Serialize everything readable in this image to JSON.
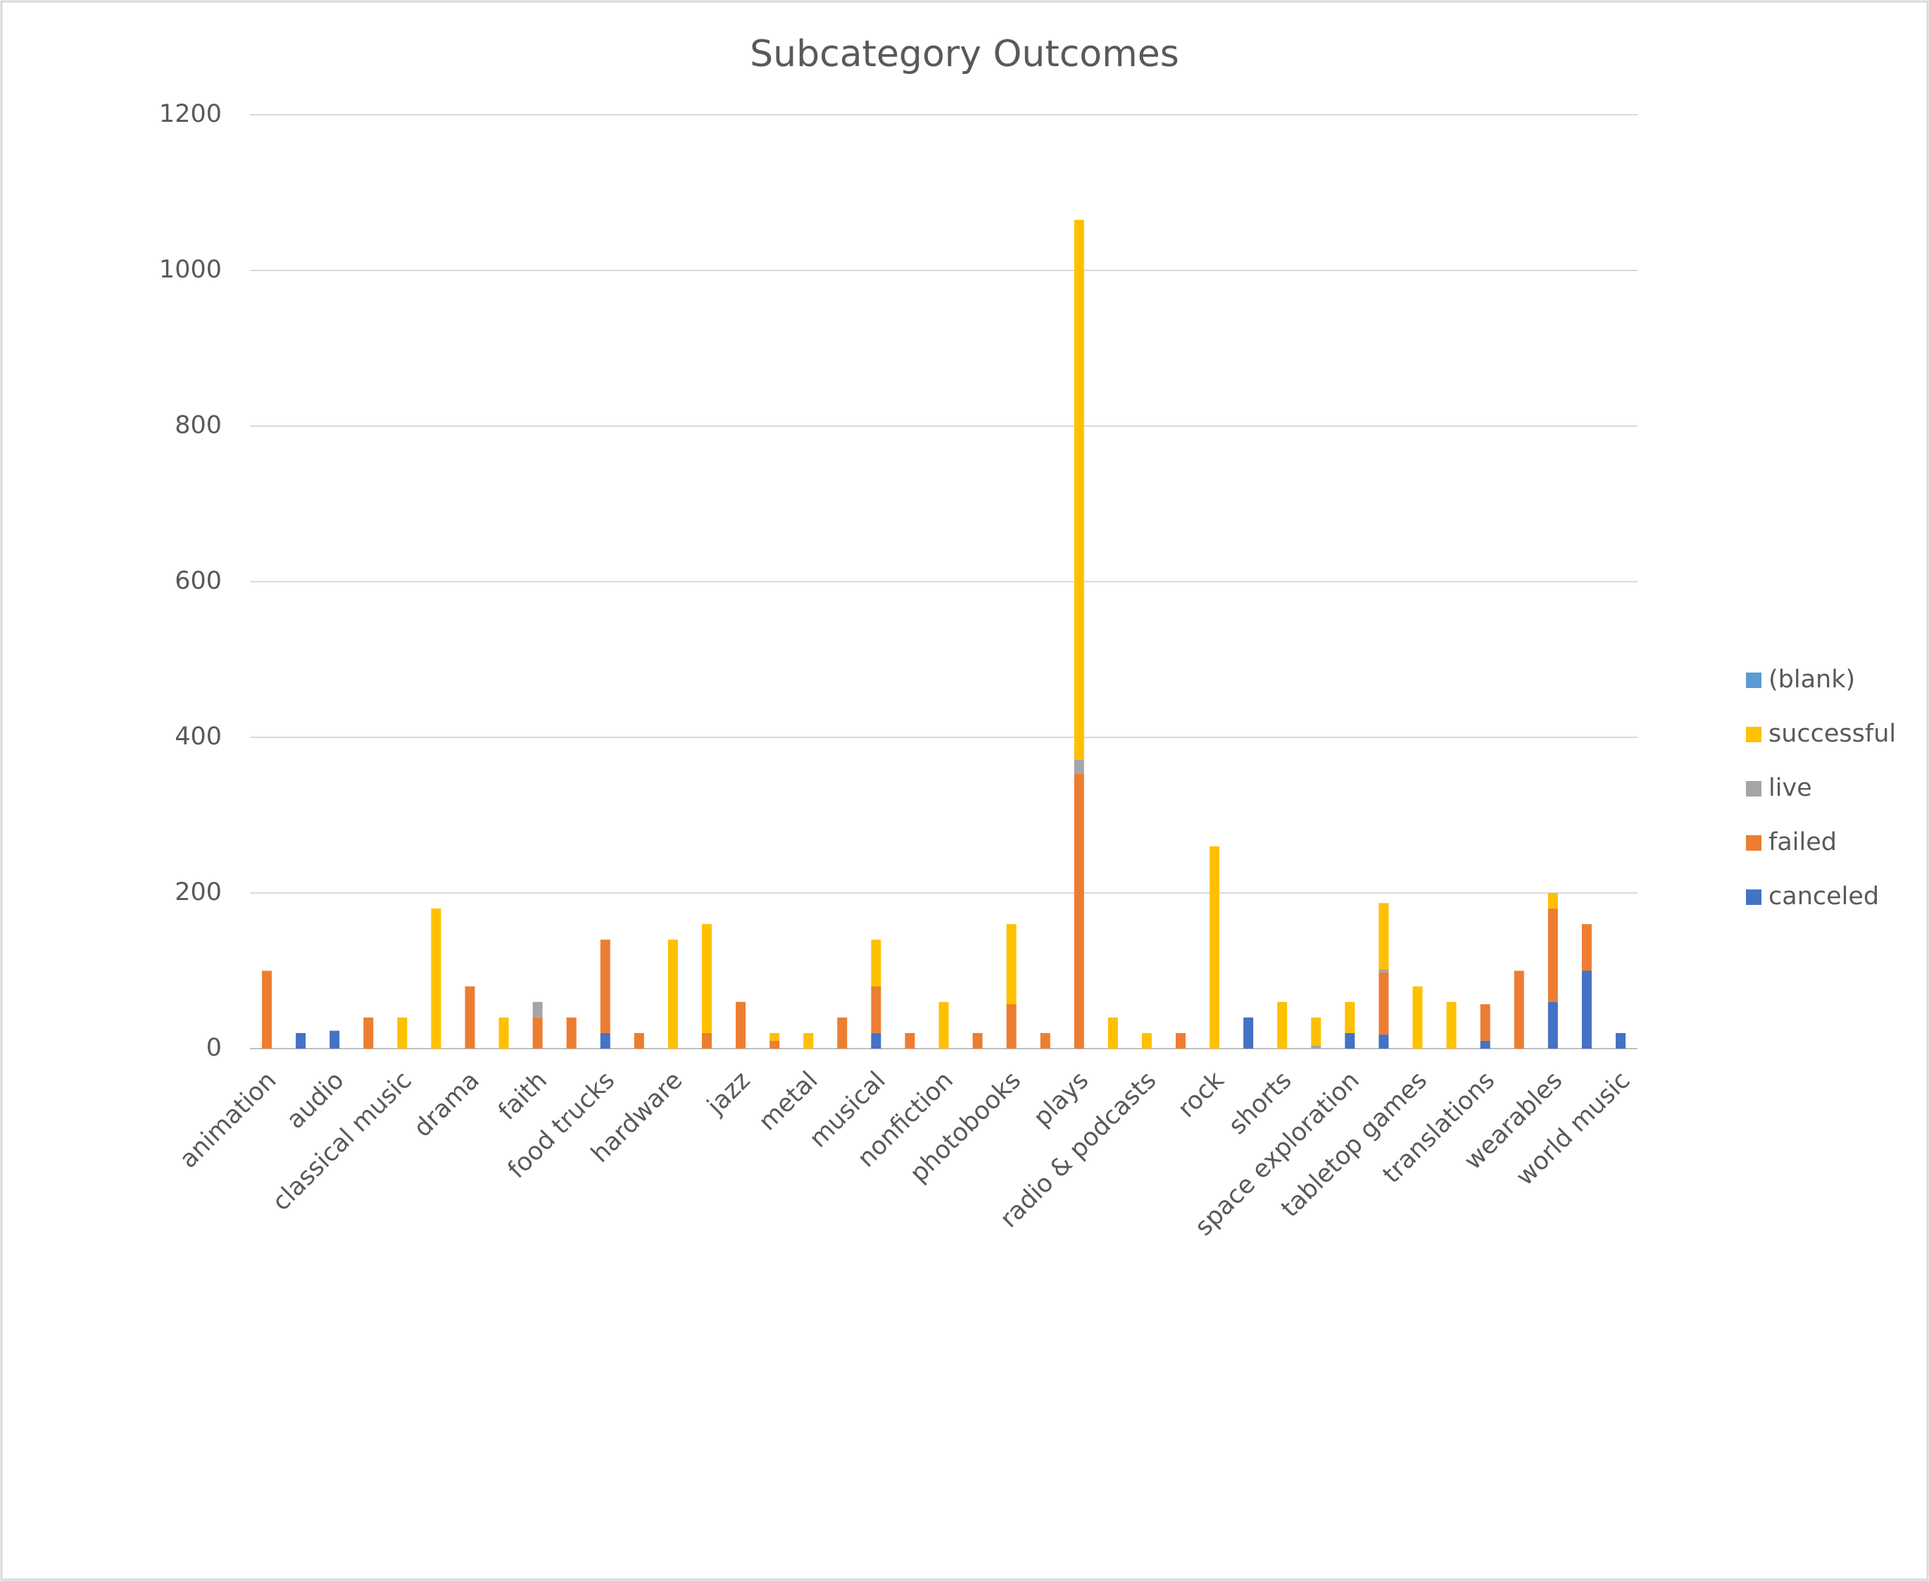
{
  "chart_data": {
    "type": "stacked_bar",
    "title": "Subcategory Outcomes",
    "categories": [
      "animation",
      null,
      "audio",
      null,
      "classical music",
      null,
      "drama",
      null,
      "faith",
      null,
      "food trucks",
      null,
      "hardware",
      null,
      "jazz",
      null,
      "metal",
      null,
      "musical",
      null,
      "nonfiction",
      null,
      "photobooks",
      null,
      "plays",
      null,
      "radio & podcasts",
      null,
      "rock",
      null,
      "shorts",
      null,
      "space exploration",
      null,
      "tabletop games",
      null,
      "translations",
      null,
      "wearables",
      null,
      "world music"
    ],
    "series": [
      {
        "name": "canceled",
        "color": "#4472c4",
        "values": [
          null,
          20,
          23,
          null,
          null,
          null,
          null,
          null,
          null,
          null,
          20,
          null,
          null,
          null,
          null,
          null,
          null,
          null,
          20,
          null,
          null,
          null,
          null,
          null,
          null,
          null,
          null,
          null,
          null,
          40,
          null,
          null,
          20,
          18,
          null,
          null,
          10,
          null,
          60,
          100,
          20
        ]
      },
      {
        "name": "failed",
        "color": "#ed7d31",
        "values": [
          100,
          null,
          null,
          40,
          null,
          null,
          80,
          null,
          40,
          40,
          120,
          20,
          null,
          20,
          60,
          10,
          null,
          40,
          60,
          20,
          null,
          20,
          57,
          20,
          353,
          null,
          null,
          20,
          null,
          null,
          null,
          null,
          null,
          80,
          null,
          null,
          47,
          100,
          120,
          60,
          null
        ]
      },
      {
        "name": "live",
        "color": "#a5a5a5",
        "values": [
          null,
          null,
          null,
          null,
          null,
          null,
          null,
          null,
          20,
          null,
          null,
          null,
          null,
          null,
          null,
          null,
          null,
          null,
          null,
          null,
          null,
          null,
          null,
          null,
          18,
          null,
          null,
          null,
          null,
          null,
          null,
          4,
          null,
          4,
          null,
          null,
          null,
          null,
          null,
          null,
          null
        ]
      },
      {
        "name": "successful",
        "color": "#ffc000",
        "values": [
          null,
          null,
          null,
          null,
          40,
          180,
          null,
          40,
          null,
          null,
          null,
          null,
          140,
          140,
          null,
          10,
          20,
          null,
          60,
          null,
          60,
          null,
          103,
          null,
          694,
          40,
          20,
          null,
          260,
          null,
          60,
          36,
          40,
          85,
          80,
          60,
          null,
          null,
          20,
          null,
          null
        ]
      },
      {
        "name": "(blank)",
        "color": "#5b9bd5",
        "values": [
          null,
          null,
          null,
          null,
          null,
          null,
          null,
          null,
          null,
          null,
          null,
          null,
          null,
          null,
          null,
          null,
          null,
          null,
          null,
          null,
          null,
          null,
          null,
          null,
          null,
          null,
          null,
          null,
          null,
          null,
          null,
          null,
          null,
          null,
          null,
          null,
          null,
          null,
          null,
          null,
          null
        ]
      }
    ],
    "ylim": [
      0,
      1200
    ],
    "yticks": [
      0,
      200,
      400,
      600,
      800,
      1000,
      1200
    ],
    "grid": true,
    "legend": "right"
  }
}
